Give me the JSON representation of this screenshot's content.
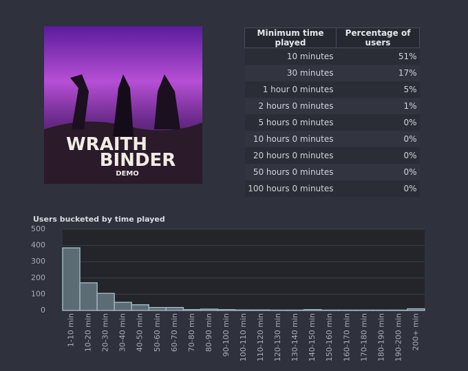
{
  "cover": {
    "title_line1": "WRAITH",
    "title_line2": "BINDER",
    "subtitle": "DEMO"
  },
  "table": {
    "headers": [
      "Minimum time played",
      "Percentage of users"
    ],
    "rows": [
      [
        "10 minutes",
        "51%"
      ],
      [
        "30 minutes",
        "17%"
      ],
      [
        "1 hour 0 minutes",
        "5%"
      ],
      [
        "2 hours 0 minutes",
        "1%"
      ],
      [
        "5 hours 0 minutes",
        "0%"
      ],
      [
        "10 hours 0 minutes",
        "0%"
      ],
      [
        "20 hours 0 minutes",
        "0%"
      ],
      [
        "50 hours 0 minutes",
        "0%"
      ],
      [
        "100 hours 0 minutes",
        "0%"
      ]
    ]
  },
  "chart_data": {
    "type": "bar",
    "title": "Users bucketed by time played",
    "categories": [
      "1-10 min",
      "10-20 min",
      "20-30 min",
      "30-40 min",
      "40-50 min",
      "50-60 min",
      "60-70 min",
      "70-80 min",
      "80-90 min",
      "90-100 min",
      "100-110 min",
      "110-120 min",
      "120-130 min",
      "130-140 min",
      "140-150 min",
      "150-160 min",
      "160-170 min",
      "170-180 min",
      "180-190 min",
      "190-200 min",
      "200+ min"
    ],
    "values": [
      385,
      170,
      105,
      50,
      35,
      18,
      18,
      5,
      8,
      5,
      3,
      3,
      2,
      2,
      5,
      2,
      2,
      2,
      2,
      2,
      10
    ],
    "color": "#5b6c75",
    "ylim": [
      0,
      500
    ],
    "yticks": [
      0,
      100,
      200,
      300,
      400,
      500
    ],
    "grid": true
  }
}
